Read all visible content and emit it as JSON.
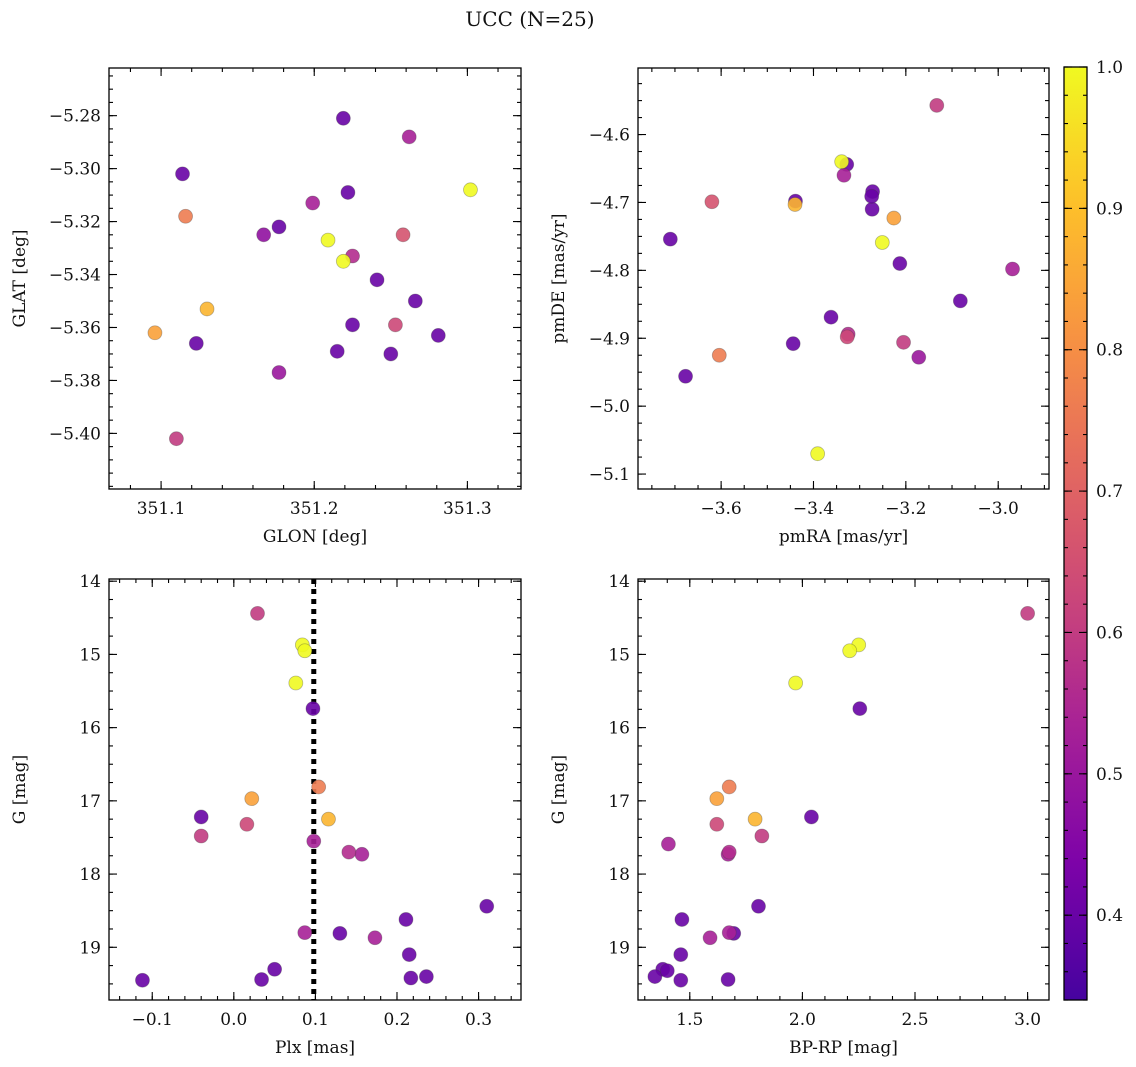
{
  "figure": {
    "title": "UCC (N=25)"
  },
  "colorbar": {
    "min": 0.34,
    "max": 1.0,
    "ticks": [
      0.4,
      0.5,
      0.6,
      0.7,
      0.8,
      0.9,
      1.0
    ],
    "tick_labels": [
      "0.4",
      "0.5",
      "0.6",
      "0.7",
      "0.8",
      "0.9",
      "1.0"
    ],
    "colormap": "plasma"
  },
  "chart_data": [
    {
      "type": "scatter",
      "id": "glon-glat",
      "xlabel": "GLON [deg]",
      "ylabel": "GLAT [deg]",
      "xlim": [
        351.066,
        351.335
      ],
      "ylim": [
        -5.421,
        -5.262
      ],
      "y_inverted": false,
      "xticks": [
        351.1,
        351.2,
        351.3
      ],
      "xtick_labels": [
        "351.1",
        "351.2",
        "351.3"
      ],
      "yticks": [
        -5.28,
        -5.3,
        -5.32,
        -5.34,
        -5.36,
        -5.38,
        -5.4
      ],
      "ytick_labels": [
        "−5.28",
        "−5.30",
        "−5.32",
        "−5.34",
        "−5.36",
        "−5.38",
        "−5.40"
      ],
      "x_minor": 0.02,
      "y_minor": 0.005,
      "grid": false,
      "x": [
        351.219,
        351.262,
        351.114,
        351.302,
        351.222,
        351.199,
        351.116,
        351.209,
        351.177,
        351.167,
        351.258,
        351.225,
        351.219,
        351.241,
        351.266,
        351.13,
        351.096,
        351.225,
        351.253,
        351.281,
        351.123,
        351.215,
        351.25,
        351.177,
        351.11
      ],
      "y": [
        -5.281,
        -5.288,
        -5.302,
        -5.308,
        -5.309,
        -5.313,
        -5.318,
        -5.327,
        -5.322,
        -5.325,
        -5.325,
        -5.333,
        -5.335,
        -5.342,
        -5.35,
        -5.353,
        -5.362,
        -5.359,
        -5.359,
        -5.363,
        -5.366,
        -5.369,
        -5.37,
        -5.377,
        -5.402
      ],
      "prob": [
        0.4,
        0.53,
        0.4,
        1.0,
        0.4,
        0.53,
        0.76,
        1.0,
        0.4,
        0.48,
        0.66,
        0.56,
        1.0,
        0.4,
        0.4,
        0.88,
        0.84,
        0.4,
        0.63,
        0.4,
        0.4,
        0.4,
        0.4,
        0.5,
        0.6
      ]
    },
    {
      "type": "scatter",
      "id": "pmra-pmde",
      "xlabel": "pmRA [mas/yr]",
      "ylabel": "pmDE [mas/yr]",
      "xlim": [
        -3.78,
        -2.89
      ],
      "ylim": [
        -5.122,
        -4.502
      ],
      "y_inverted": false,
      "xticks": [
        -3.6,
        -3.4,
        -3.2,
        -3.0
      ],
      "xtick_labels": [
        "−3.6",
        "−3.4",
        "−3.2",
        "−3.0"
      ],
      "yticks": [
        -4.6,
        -4.7,
        -4.8,
        -4.9,
        -5.0,
        -5.1
      ],
      "ytick_labels": [
        "−4.6",
        "−4.7",
        "−4.8",
        "−4.9",
        "−5.0",
        "−5.1"
      ],
      "x_minor": 0.05,
      "y_minor": 0.025,
      "grid": false,
      "x": [
        -3.133,
        -3.339,
        -3.328,
        -3.334,
        -3.272,
        -3.62,
        -3.439,
        -3.44,
        -3.273,
        -3.226,
        -3.71,
        -3.251,
        -3.213,
        -2.969,
        -3.082,
        -3.362,
        -3.325,
        -3.327,
        -3.444,
        -3.205,
        -3.604,
        -3.172,
        -3.677,
        -3.391,
        -3.274
      ],
      "y": [
        -4.557,
        -4.64,
        -4.644,
        -4.66,
        -4.684,
        -4.699,
        -4.698,
        -4.703,
        -4.71,
        -4.723,
        -4.754,
        -4.759,
        -4.79,
        -4.798,
        -4.845,
        -4.869,
        -4.894,
        -4.898,
        -4.908,
        -4.906,
        -4.925,
        -4.928,
        -4.956,
        -5.07,
        -4.691
      ],
      "prob": [
        0.6,
        1.0,
        0.4,
        0.53,
        0.4,
        0.66,
        0.4,
        0.88,
        0.4,
        0.84,
        0.4,
        1.0,
        0.4,
        0.53,
        0.4,
        0.4,
        0.56,
        0.63,
        0.4,
        0.6,
        0.76,
        0.5,
        0.4,
        1.0,
        0.4
      ]
    },
    {
      "type": "scatter",
      "id": "plx-g",
      "xlabel": "Plx [mas]",
      "ylabel": "G [mag]",
      "xlim": [
        -0.153,
        0.352
      ],
      "ylim": [
        19.72,
        13.97
      ],
      "y_inverted": true,
      "xticks": [
        -0.1,
        0.0,
        0.1,
        0.2,
        0.3
      ],
      "xtick_labels": [
        "−0.1",
        "0.0",
        "0.1",
        "0.2",
        "0.3"
      ],
      "yticks": [
        14,
        15,
        16,
        17,
        18,
        19
      ],
      "ytick_labels": [
        "14",
        "15",
        "16",
        "17",
        "18",
        "19"
      ],
      "x_minor": 0.02,
      "y_minor": 0.25,
      "grid": false,
      "reference_line": {
        "axis": "x",
        "value": 0.098,
        "style": "dotted"
      },
      "x": [
        0.029,
        0.084,
        0.087,
        0.076,
        0.097,
        0.022,
        0.104,
        -0.04,
        0.116,
        0.016,
        -0.04,
        0.098,
        0.141,
        0.157,
        0.31,
        0.211,
        0.087,
        0.13,
        0.173,
        0.215,
        0.05,
        -0.112,
        0.034,
        0.217,
        0.236
      ],
      "y": [
        14.44,
        14.87,
        14.95,
        15.39,
        15.74,
        16.97,
        16.81,
        17.22,
        17.25,
        17.32,
        17.48,
        17.55,
        17.7,
        17.73,
        18.44,
        18.62,
        18.8,
        18.81,
        18.87,
        19.1,
        19.3,
        19.45,
        19.44,
        19.42,
        19.4
      ],
      "prob": [
        0.6,
        1.0,
        1.0,
        1.0,
        0.4,
        0.84,
        0.76,
        0.4,
        0.88,
        0.63,
        0.6,
        0.53,
        0.56,
        0.53,
        0.4,
        0.4,
        0.53,
        0.4,
        0.53,
        0.4,
        0.4,
        0.4,
        0.4,
        0.4,
        0.4
      ]
    },
    {
      "type": "scatter",
      "id": "bprp-g",
      "xlabel": "BP-RP [mag]",
      "ylabel": "G [mag]",
      "xlim": [
        1.27,
        3.095
      ],
      "ylim": [
        19.72,
        13.97
      ],
      "y_inverted": true,
      "xticks": [
        1.5,
        2.0,
        2.5,
        3.0
      ],
      "xtick_labels": [
        "1.5",
        "2.0",
        "2.5",
        "3.0"
      ],
      "yticks": [
        14,
        15,
        16,
        17,
        18,
        19
      ],
      "ytick_labels": [
        "14",
        "15",
        "16",
        "17",
        "18",
        "19"
      ],
      "x_minor": 0.1,
      "y_minor": 0.25,
      "grid": false,
      "x": [
        3.0,
        2.25,
        2.21,
        1.97,
        2.255,
        1.675,
        1.62,
        1.79,
        2.04,
        1.62,
        1.82,
        1.405,
        1.675,
        1.67,
        1.805,
        1.465,
        1.675,
        1.695,
        1.59,
        1.46,
        1.38,
        1.345,
        1.46,
        1.67,
        1.4
      ],
      "y": [
        14.44,
        14.87,
        14.95,
        15.39,
        15.74,
        16.81,
        16.97,
        17.25,
        17.22,
        17.32,
        17.48,
        17.59,
        17.7,
        17.73,
        18.44,
        18.62,
        18.8,
        18.81,
        18.87,
        19.1,
        19.3,
        19.4,
        19.45,
        19.44,
        19.32
      ],
      "prob": [
        0.6,
        1.0,
        1.0,
        1.0,
        0.4,
        0.76,
        0.84,
        0.88,
        0.4,
        0.63,
        0.6,
        0.53,
        0.56,
        0.53,
        0.4,
        0.4,
        0.53,
        0.4,
        0.53,
        0.4,
        0.4,
        0.4,
        0.4,
        0.4,
        0.4
      ]
    }
  ]
}
